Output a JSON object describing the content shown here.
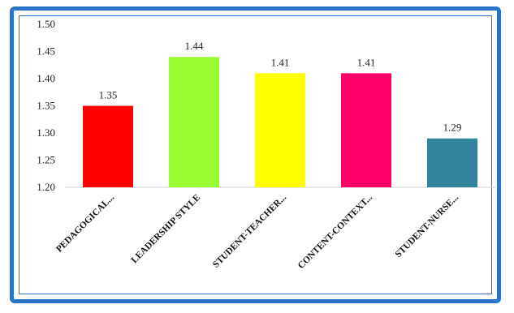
{
  "chart_data": {
    "type": "bar",
    "categories": [
      "PEDAGOGICAL...",
      "LEADERSHIP STYLE",
      "STUDENT-TEACHER...",
      "CONTENT-CONTEXT...",
      "STUDENT-NURSE..."
    ],
    "values": [
      1.35,
      1.44,
      1.41,
      1.41,
      1.29
    ],
    "data_labels": [
      "1.35",
      "1.44",
      "1.41",
      "1.41",
      "1.29"
    ],
    "colors": [
      "#ff0000",
      "#99ff33",
      "#ffff00",
      "#ff0066",
      "#31849b"
    ],
    "ylim": [
      1.2,
      1.5
    ],
    "yticks": [
      "1.20",
      "1.25",
      "1.30",
      "1.35",
      "1.40",
      "1.45",
      "1.50"
    ],
    "title": "",
    "xlabel": "",
    "ylabel": "",
    "grid": false,
    "legend": "none"
  },
  "frame_color": "#2a74c9"
}
